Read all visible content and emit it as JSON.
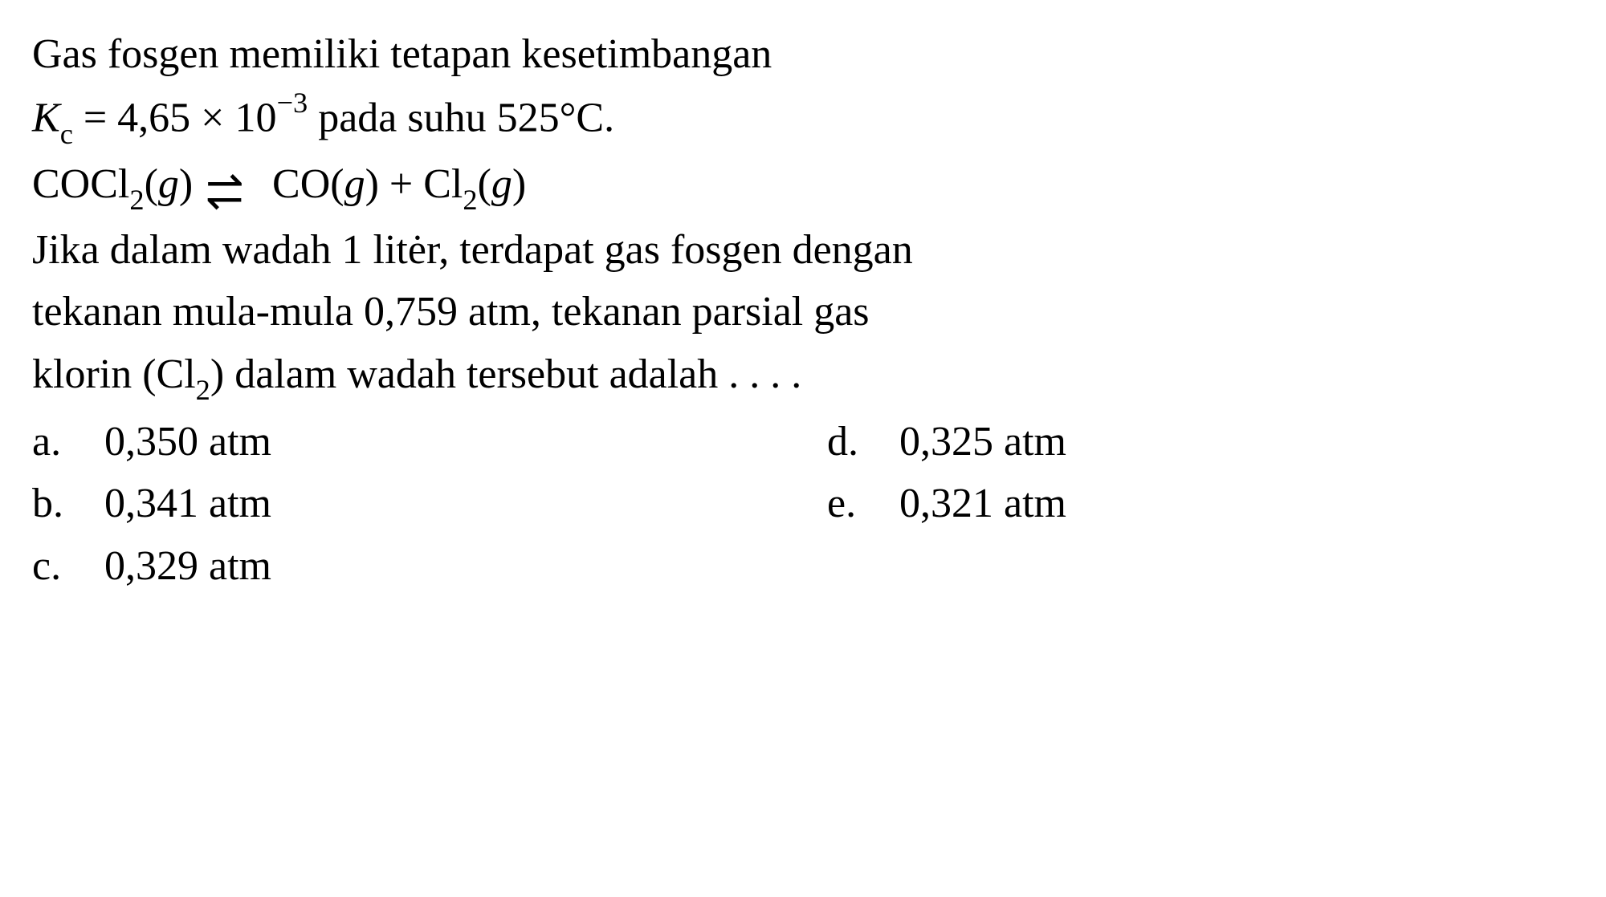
{
  "text": {
    "line1": "Gas fosgen memiliki tetapan kesetimbangan",
    "kc_var": "K",
    "kc_sub": "c",
    "equals": " = 4,65 × 10",
    "exp": "−3",
    "line2_rest": " pada suhu 525°C.",
    "eq_cocl": "COCl",
    "eq_sub2a": "2",
    "eq_g1": "(",
    "eq_g1_i": "g",
    "eq_g1_c": ") ",
    "eq_co": " CO(",
    "eq_co_i": "g",
    "eq_co_c": ") + Cl",
    "eq_sub2b": "2",
    "eq_g3": "(",
    "eq_g3_i": "g",
    "eq_g3_c": ")",
    "line4": "Jika dalam wadah 1 litėr, terdapat gas fosgen dengan",
    "line5": "tekanan mula-mula 0,759 atm, tekanan parsial gas",
    "line6_a": "klorin (Cl",
    "line6_sub": "2",
    "line6_b": ") dalam wadah tersebut adalah . . . ."
  },
  "options": {
    "a": {
      "letter": "a.",
      "text": "0,350 atm"
    },
    "b": {
      "letter": "b.",
      "text": "0,341 atm"
    },
    "c": {
      "letter": "c.",
      "text": "0,329 atm"
    },
    "d": {
      "letter": "d.",
      "text": "0,325 atm"
    },
    "e": {
      "letter": "e.",
      "text": "0,321 atm"
    }
  },
  "style": {
    "font_size": 52,
    "text_color": "#000000",
    "background_color": "#ffffff",
    "font_family": "Times New Roman"
  }
}
